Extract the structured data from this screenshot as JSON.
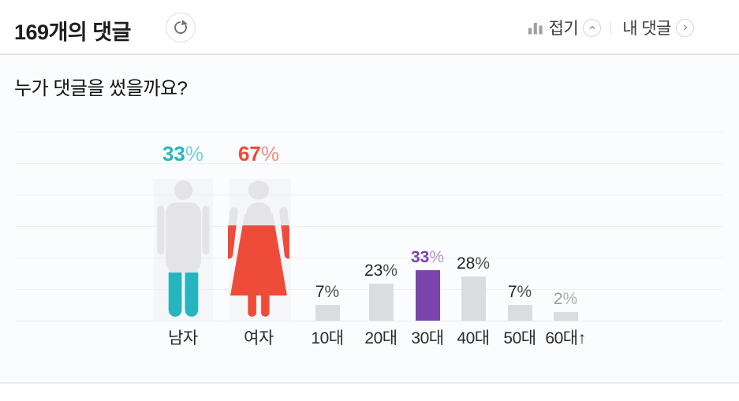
{
  "header": {
    "comment_count": "169",
    "comment_count_suffix": "개의 댓글",
    "collapse_label": "접기",
    "my_comments_label": "내 댓글"
  },
  "graph": {
    "title": "누가 댓글을 썼을까요?"
  },
  "chart_data": [
    {
      "type": "pictogram",
      "name": "gender-distribution",
      "categories": [
        "남자",
        "여자"
      ],
      "values": [
        33,
        67
      ],
      "unit": "%",
      "colors": [
        "#26b5be",
        "#ef4b3a"
      ],
      "base_color": "#e4e4e6",
      "legend_position": "above-figures",
      "grid": true
    },
    {
      "type": "bar",
      "name": "age-distribution",
      "categories": [
        "10대",
        "20대",
        "30대",
        "40대",
        "50대",
        "60대↑"
      ],
      "values": [
        7,
        23,
        33,
        28,
        7,
        2
      ],
      "unit": "%",
      "bar_color": "#dadde0",
      "highlight_index": 2,
      "highlight_color": "#7b44ac",
      "muted_label_index": 5,
      "muted_label_color": "#9ba0a5",
      "label_color": "#262626",
      "ylim": [
        0,
        100
      ],
      "grid": true
    }
  ]
}
